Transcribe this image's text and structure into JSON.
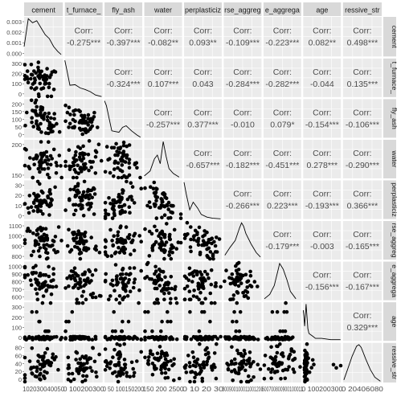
{
  "chart_data": {
    "type": "scatter",
    "matrix": "pairs",
    "variables": [
      "cement",
      "blast_furnace_slag",
      "fly_ash",
      "water",
      "superplasticizer",
      "coarse_aggregate",
      "fine_aggregate",
      "age",
      "concrete_compressive_strength"
    ],
    "strip_labels_top": [
      "cement",
      "t_furnace_",
      "fly_ash",
      "water",
      "perplasticiz",
      "rse_aggreg",
      "e_aggrega",
      "age",
      "ressive_str"
    ],
    "strip_labels_right": [
      "cement",
      "t_furnace_",
      "fly_ash",
      "water",
      "perplasticiz",
      "rse_aggreg",
      "e_aggrega",
      "age",
      "ressive_str"
    ],
    "corr_label": "Corr:",
    "correlations": [
      {
        "row": 0,
        "col": 1,
        "value": "-0.275***"
      },
      {
        "row": 0,
        "col": 2,
        "value": "-0.397***"
      },
      {
        "row": 0,
        "col": 3,
        "value": "-0.082**"
      },
      {
        "row": 0,
        "col": 4,
        "value": "0.093**"
      },
      {
        "row": 0,
        "col": 5,
        "value": "-0.109***"
      },
      {
        "row": 0,
        "col": 6,
        "value": "-0.223***"
      },
      {
        "row": 0,
        "col": 7,
        "value": "0.082**"
      },
      {
        "row": 0,
        "col": 8,
        "value": "0.498***"
      },
      {
        "row": 1,
        "col": 2,
        "value": "-0.324***"
      },
      {
        "row": 1,
        "col": 3,
        "value": "0.107***"
      },
      {
        "row": 1,
        "col": 4,
        "value": "0.043"
      },
      {
        "row": 1,
        "col": 5,
        "value": "-0.284***"
      },
      {
        "row": 1,
        "col": 6,
        "value": "-0.282***"
      },
      {
        "row": 1,
        "col": 7,
        "value": "-0.044"
      },
      {
        "row": 1,
        "col": 8,
        "value": "0.135***"
      },
      {
        "row": 2,
        "col": 3,
        "value": "-0.257***"
      },
      {
        "row": 2,
        "col": 4,
        "value": "0.377***"
      },
      {
        "row": 2,
        "col": 5,
        "value": "-0.010"
      },
      {
        "row": 2,
        "col": 6,
        "value": "0.079*"
      },
      {
        "row": 2,
        "col": 7,
        "value": "-0.154***"
      },
      {
        "row": 2,
        "col": 8,
        "value": "-0.106***"
      },
      {
        "row": 3,
        "col": 4,
        "value": "-0.657***"
      },
      {
        "row": 3,
        "col": 5,
        "value": "-0.182***"
      },
      {
        "row": 3,
        "col": 6,
        "value": "-0.451***"
      },
      {
        "row": 3,
        "col": 7,
        "value": "0.278***"
      },
      {
        "row": 3,
        "col": 8,
        "value": "-0.290***"
      },
      {
        "row": 4,
        "col": 5,
        "value": "-0.266***"
      },
      {
        "row": 4,
        "col": 6,
        "value": "0.223***"
      },
      {
        "row": 4,
        "col": 7,
        "value": "-0.193***"
      },
      {
        "row": 4,
        "col": 8,
        "value": "0.366***"
      },
      {
        "row": 5,
        "col": 6,
        "value": "-0.179***"
      },
      {
        "row": 5,
        "col": 7,
        "value": "-0.003"
      },
      {
        "row": 5,
        "col": 8,
        "value": "-0.165***"
      },
      {
        "row": 6,
        "col": 7,
        "value": "-0.156***"
      },
      {
        "row": 6,
        "col": 8,
        "value": "-0.167***"
      },
      {
        "row": 7,
        "col": 8,
        "value": "0.329***"
      }
    ],
    "ranges": [
      [
        100,
        560
      ],
      [
        0,
        370
      ],
      [
        0,
        210
      ],
      [
        120,
        250
      ],
      [
        0,
        33
      ],
      [
        790,
        1150
      ],
      [
        580,
        1000
      ],
      [
        0,
        370
      ],
      [
        0,
        85
      ]
    ],
    "row_y_ticks": [
      [
        "0.003",
        "0.002",
        "0.001",
        "0.000"
      ],
      [
        "300",
        "200",
        "100",
        "0"
      ],
      [
        "200",
        "150",
        "100",
        "50",
        "0"
      ],
      [
        "200",
        "150"
      ],
      [
        "30",
        "20",
        "10",
        "0"
      ],
      [
        "1100",
        "1000",
        "900",
        "800"
      ],
      [
        "1000",
        "900",
        "800",
        "700",
        "600"
      ],
      [
        "300",
        "200",
        "100",
        "0"
      ],
      [
        "80",
        "60",
        "40",
        "20",
        "0"
      ]
    ],
    "x_axis_tick_text": [
      "102030040050",
      "0 100200300",
      "0 50 100150200",
      "150 200 2500",
      "0 10 20 30",
      "800900100011001200",
      "600700800900100011",
      "0 100200300",
      "0 20406080"
    ],
    "densities": [
      {
        "var": 0,
        "x": [
          100,
          150,
          200,
          250,
          300,
          350,
          400,
          450,
          500,
          540
        ],
        "y": [
          0.001,
          0.0038,
          0.0034,
          0.0036,
          0.0029,
          0.0022,
          0.0018,
          0.001,
          0.0005,
          0.0002
        ]
      },
      {
        "var": 1,
        "x": [
          0,
          20,
          50,
          100,
          150,
          200,
          250,
          300,
          360
        ],
        "y": [
          0.0068,
          0.005,
          0.0022,
          0.0023,
          0.0017,
          0.0014,
          0.001,
          0.0004,
          0.0001
        ]
      },
      {
        "var": 2,
        "x": [
          0,
          10,
          40,
          80,
          100,
          120,
          150,
          180,
          200
        ],
        "y": [
          0.016,
          0.014,
          0.003,
          0.0024,
          0.0045,
          0.0052,
          0.003,
          0.0012,
          0.0002
        ]
      },
      {
        "var": 3,
        "x": [
          120,
          140,
          155,
          165,
          175,
          185,
          195,
          205,
          220,
          240
        ],
        "y": [
          0.002,
          0.006,
          0.016,
          0.019,
          0.012,
          0.03,
          0.018,
          0.008,
          0.004,
          0.001
        ]
      },
      {
        "var": 4,
        "x": [
          0,
          2,
          5,
          8,
          10,
          12,
          15,
          20,
          25,
          32
        ],
        "y": [
          0.24,
          0.16,
          0.06,
          0.11,
          0.09,
          0.07,
          0.03,
          0.012,
          0.005,
          0.001
        ]
      },
      {
        "var": 5,
        "x": [
          800,
          850,
          900,
          940,
          960,
          980,
          1000,
          1050,
          1100,
          1140
        ],
        "y": [
          0.0005,
          0.0014,
          0.0022,
          0.0036,
          0.0042,
          0.0038,
          0.003,
          0.0018,
          0.0008,
          0.0003
        ]
      },
      {
        "var": 6,
        "x": [
          590,
          650,
          700,
          740,
          760,
          780,
          800,
          840,
          880,
          940
        ],
        "y": [
          0.0002,
          0.0008,
          0.002,
          0.004,
          0.005,
          0.0046,
          0.0042,
          0.0028,
          0.0012,
          0.0002
        ]
      },
      {
        "var": 7,
        "x": [
          0,
          7,
          14,
          28,
          45,
          56,
          90,
          120,
          180,
          270,
          365
        ],
        "y": [
          0.025,
          0.02,
          0.012,
          0.03,
          0.01,
          0.006,
          0.004,
          0.002,
          0.002,
          0.001,
          0.001
        ]
      },
      {
        "var": 8,
        "x": [
          2,
          10,
          20,
          30,
          35,
          40,
          50,
          60,
          70,
          82
        ],
        "y": [
          0.002,
          0.01,
          0.02,
          0.028,
          0.029,
          0.027,
          0.018,
          0.01,
          0.004,
          0.001
        ]
      }
    ],
    "grid": true,
    "point_color": "#000000"
  },
  "colors": {
    "strip_fill": "#d9d9d9",
    "panel_fill": "#ebebeb",
    "grid": "#ffffff",
    "text": "#4d4d4d",
    "ink": "#000000"
  }
}
